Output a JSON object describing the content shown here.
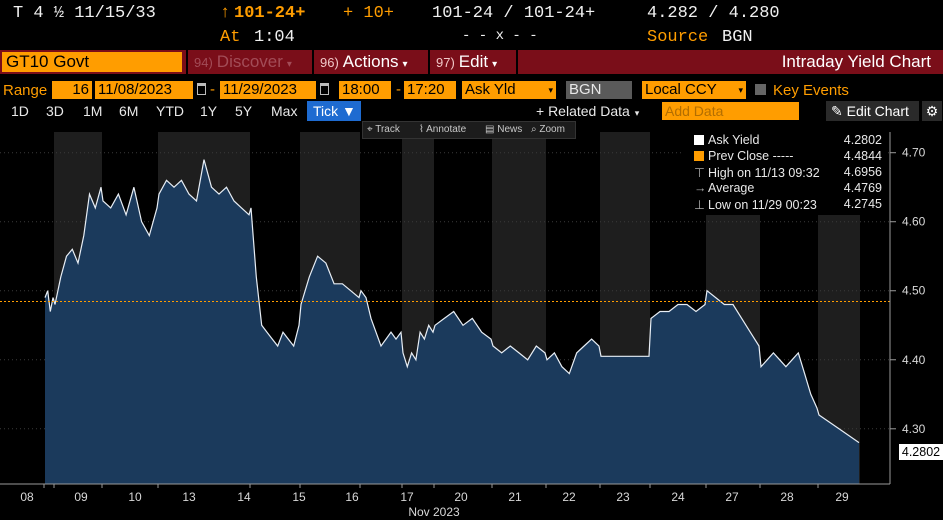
{
  "ticker": {
    "security": "T 4 ½ 11/15/33",
    "arrow": "↑",
    "price": "101-24+",
    "change": "+ 10+",
    "bid_ask": "101-24 / 101-24+",
    "yields": "4.282 / 4.280",
    "at_label": "At",
    "time": "1:04",
    "tilde": "- - x - -",
    "source_label": "Source",
    "source": "BGN"
  },
  "menu": {
    "security_field": "GT10 Govt",
    "discover_num": "94)",
    "discover": "Discover",
    "actions_num": "96)",
    "actions": "Actions",
    "edit_num": "97)",
    "edit": "Edit",
    "title": "Intraday Yield Chart"
  },
  "range_bar": {
    "range_label": "Range",
    "days": "16",
    "start_date": "11/08/2023",
    "end_date": "11/29/2023",
    "start_time": "18:00",
    "end_time": "17:20",
    "field": "Ask Yld",
    "source": "BGN",
    "currency": "Local CCY",
    "key_events": "Key Events"
  },
  "periods": {
    "items": [
      "1D",
      "3D",
      "1M",
      "6M",
      "YTD",
      "1Y",
      "5Y",
      "Max"
    ],
    "tick": "Tick ▼",
    "related": "+ Related Data",
    "add_data_placeholder": "Add Data",
    "edit_chart": "Edit Chart"
  },
  "mini_toolbar": {
    "track": "Track",
    "annotate": "Annotate",
    "news": "News",
    "zoom": "Zoom"
  },
  "legend": {
    "rows": [
      {
        "label": "Ask Yield",
        "value": "4.2802",
        "color": "#ffffff"
      },
      {
        "label": "Prev Close -----",
        "value": "4.4844",
        "color": "#ff9d00"
      },
      {
        "label": "High on 11/13 09:32",
        "value": "4.6956",
        "color": "#888888"
      },
      {
        "label": "Average",
        "value": "4.4769",
        "color": "#888888"
      },
      {
        "label": "Low on 11/29 00:23",
        "value": "4.2745",
        "color": "#888888"
      }
    ]
  },
  "last_value": "4.2802",
  "colors": {
    "area_fill": "#1b3a5c",
    "prev_close_line": "#ff9d00",
    "menu_bar": "#7a0e19",
    "accent_orange": "#ff9d00"
  },
  "chart_data": {
    "type": "area",
    "x_tick_labels": [
      "08",
      "09",
      "10",
      "13",
      "14",
      "15",
      "16",
      "17",
      "20",
      "21",
      "22",
      "23",
      "24",
      "27",
      "28",
      "29"
    ],
    "x_month_label": "Nov 2023",
    "y_ticks": [
      4.3,
      4.4,
      4.5,
      4.6,
      4.7
    ],
    "y_tick_labels": [
      "4.30",
      "4.40",
      "4.50",
      "4.60",
      "4.70"
    ],
    "ylim": [
      4.22,
      4.73
    ],
    "prev_close": 4.4844,
    "series": [
      {
        "name": "Ask Yield",
        "points": [
          [
            "08",
            4.49
          ],
          [
            "08",
            4.5
          ],
          [
            "08",
            4.47
          ],
          [
            "08",
            4.49
          ],
          [
            "09",
            4.48
          ],
          [
            "09",
            4.52
          ],
          [
            "09",
            4.55
          ],
          [
            "09",
            4.56
          ],
          [
            "09",
            4.54
          ],
          [
            "09",
            4.58
          ],
          [
            "09",
            4.64
          ],
          [
            "09",
            4.62
          ],
          [
            "09",
            4.65
          ],
          [
            "10",
            4.63
          ],
          [
            "10",
            4.62
          ],
          [
            "10",
            4.64
          ],
          [
            "10",
            4.61
          ],
          [
            "10",
            4.65
          ],
          [
            "10",
            4.6
          ],
          [
            "10",
            4.58
          ],
          [
            "10",
            4.62
          ],
          [
            "13",
            4.64
          ],
          [
            "13",
            4.66
          ],
          [
            "13",
            4.65
          ],
          [
            "13",
            4.66
          ],
          [
            "13",
            4.64
          ],
          [
            "13",
            4.63
          ],
          [
            "13",
            4.69
          ],
          [
            "13",
            4.65
          ],
          [
            "13",
            4.64
          ],
          [
            "13",
            4.65
          ],
          [
            "13",
            4.63
          ],
          [
            "13",
            4.62
          ],
          [
            "13",
            4.61
          ],
          [
            "14",
            4.62
          ],
          [
            "14",
            4.52
          ],
          [
            "14",
            4.45
          ],
          [
            "14",
            4.44
          ],
          [
            "14",
            4.43
          ],
          [
            "14",
            4.42
          ],
          [
            "14",
            4.44
          ],
          [
            "14",
            4.43
          ],
          [
            "14",
            4.42
          ],
          [
            "14",
            4.45
          ],
          [
            "15",
            4.48
          ],
          [
            "15",
            4.52
          ],
          [
            "15",
            4.55
          ],
          [
            "15",
            4.54
          ],
          [
            "15",
            4.51
          ],
          [
            "15",
            4.51
          ],
          [
            "15",
            4.5
          ],
          [
            "15",
            4.49
          ],
          [
            "16",
            4.5
          ],
          [
            "16",
            4.49
          ],
          [
            "16",
            4.46
          ],
          [
            "16",
            4.44
          ],
          [
            "16",
            4.42
          ],
          [
            "16",
            4.43
          ],
          [
            "16",
            4.44
          ],
          [
            "16",
            4.43
          ],
          [
            "16",
            4.44
          ],
          [
            "17",
            4.41
          ],
          [
            "17",
            4.39
          ],
          [
            "17",
            4.41
          ],
          [
            "17",
            4.4
          ],
          [
            "17",
            4.44
          ],
          [
            "17",
            4.43
          ],
          [
            "17",
            4.45
          ],
          [
            "17",
            4.44
          ],
          [
            "20",
            4.45
          ],
          [
            "20",
            4.46
          ],
          [
            "20",
            4.47
          ],
          [
            "20",
            4.45
          ],
          [
            "20",
            4.46
          ],
          [
            "20",
            4.44
          ],
          [
            "20",
            4.43
          ],
          [
            "21",
            4.42
          ],
          [
            "21",
            4.41
          ],
          [
            "21",
            4.42
          ],
          [
            "21",
            4.41
          ],
          [
            "21",
            4.4
          ],
          [
            "21",
            4.42
          ],
          [
            "21",
            4.41
          ],
          [
            "22",
            4.4
          ],
          [
            "22",
            4.41
          ],
          [
            "22",
            4.39
          ],
          [
            "22",
            4.38
          ],
          [
            "22",
            4.41
          ],
          [
            "22",
            4.42
          ],
          [
            "22",
            4.43
          ],
          [
            "22",
            4.42
          ],
          [
            "23",
            4.405
          ],
          [
            "23",
            4.405
          ],
          [
            "23",
            4.405
          ],
          [
            "24",
            4.46
          ],
          [
            "24",
            4.47
          ],
          [
            "24",
            4.47
          ],
          [
            "24",
            4.48
          ],
          [
            "24",
            4.48
          ],
          [
            "24",
            4.47
          ],
          [
            "24",
            4.48
          ],
          [
            "27",
            4.5
          ],
          [
            "27",
            4.49
          ],
          [
            "27",
            4.48
          ],
          [
            "27",
            4.48
          ],
          [
            "27",
            4.46
          ],
          [
            "27",
            4.44
          ],
          [
            "27",
            4.42
          ],
          [
            "28",
            4.39
          ],
          [
            "28",
            4.4
          ],
          [
            "28",
            4.41
          ],
          [
            "28",
            4.4
          ],
          [
            "28",
            4.39
          ],
          [
            "28",
            4.4
          ],
          [
            "28",
            4.41
          ],
          [
            "28",
            4.38
          ],
          [
            "28",
            4.35
          ],
          [
            "28",
            4.33
          ],
          [
            "29",
            4.32
          ],
          [
            "29",
            4.3
          ],
          [
            "29",
            4.28
          ]
        ]
      }
    ]
  }
}
